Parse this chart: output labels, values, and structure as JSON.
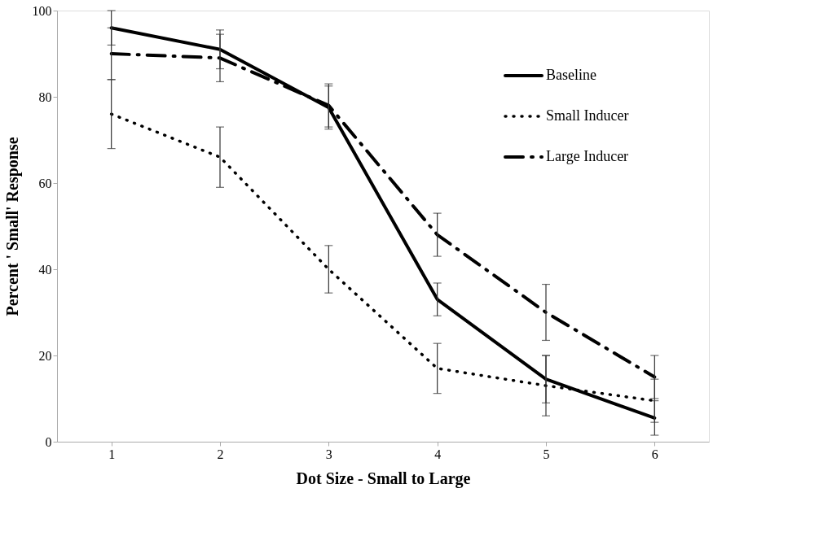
{
  "chart_data": {
    "type": "line",
    "xlabel": "Dot Size - Small to Large",
    "ylabel": "Percent ' Small' Response",
    "categories": [
      "1",
      "2",
      "3",
      "4",
      "5",
      "6"
    ],
    "ylim": [
      0,
      100
    ],
    "yticks": [
      0,
      20,
      40,
      60,
      80,
      100
    ],
    "grid": false,
    "legend": "top right",
    "marker": "none",
    "series": [
      {
        "name": "Baseline",
        "color": "#000000",
        "line_style": "solid",
        "values": [
          96,
          91,
          77.5,
          33,
          14.5,
          5.5
        ],
        "errors": [
          4,
          4.5,
          5,
          3.8,
          5.5,
          4
        ]
      },
      {
        "name": "Small Inducer",
        "color": "#000000",
        "line_style": "dotted",
        "values": [
          76,
          66,
          40,
          17,
          13,
          9.5
        ],
        "errors": [
          8,
          7,
          5.5,
          5.8,
          7,
          5
        ]
      },
      {
        "name": "Large Inducer",
        "color": "#000000",
        "line_style": "dashed",
        "values": [
          90,
          89,
          78,
          48,
          30,
          15
        ],
        "errors": [
          6,
          5.5,
          5,
          5,
          6.5,
          5
        ]
      }
    ]
  }
}
